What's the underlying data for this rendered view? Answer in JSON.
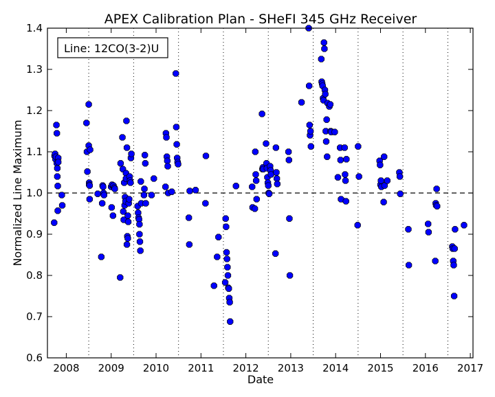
{
  "chart_data": {
    "type": "scatter",
    "title": "APEX Calibration Plan - SHeFI 345 GHz Receiver",
    "xlabel": "Date",
    "ylabel": "Normalized Line Maximum",
    "legend_box": "Line: 12CO(3-2)U",
    "legend_placement": "top-left",
    "xlim": [
      2007.58,
      2017.06
    ],
    "ylim": [
      0.6,
      1.4
    ],
    "x_ticks": [
      2008,
      2009,
      2010,
      2011,
      2012,
      2013,
      2014,
      2015,
      2016,
      2017
    ],
    "x_tick_labels": [
      "2008",
      "2009",
      "2010",
      "2011",
      "2012",
      "2013",
      "2014",
      "2015",
      "2016",
      "2017"
    ],
    "y_ticks": [
      0.6,
      0.7,
      0.8,
      0.9,
      1.0,
      1.1,
      1.2,
      1.3,
      1.4
    ],
    "y_tick_labels": [
      "0.6",
      "0.7",
      "0.8",
      "0.9",
      "1.0",
      "1.1",
      "1.2",
      "1.3",
      "1.4"
    ],
    "reference_line_y": 1.0,
    "vertical_dotted_lines_x": [
      2008.5,
      2009.5,
      2010.5,
      2011.5,
      2012.5,
      2013.5,
      2014.5,
      2015.5,
      2016.5
    ],
    "marker_color": "#0000ff",
    "marker_edge_color": "#000000",
    "x": [
      2007.73,
      2007.74,
      2007.75,
      2007.76,
      2007.77,
      2007.78,
      2007.79,
      2007.79,
      2007.8,
      2007.8,
      2007.81,
      2007.81,
      2007.82,
      2007.82,
      2007.9,
      2007.91,
      2008.45,
      2008.46,
      2008.47,
      2008.5,
      2008.5,
      2008.51,
      2008.51,
      2008.52,
      2008.52,
      2008.53,
      2008.7,
      2008.78,
      2008.8,
      2008.81,
      2008.82,
      2008.83,
      2008.84,
      2009.0,
      2009.01,
      2009.02,
      2009.04,
      2009.05,
      2009.07,
      2009.08,
      2009.2,
      2009.21,
      2009.25,
      2009.26,
      2009.27,
      2009.28,
      2009.29,
      2009.3,
      2009.31,
      2009.32,
      2009.33,
      2009.33,
      2009.34,
      2009.35,
      2009.35,
      2009.36,
      2009.37,
      2009.37,
      2009.38,
      2009.39,
      2009.4,
      2009.41,
      2009.42,
      2009.43,
      2009.44,
      2009.45,
      2009.59,
      2009.6,
      2009.61,
      2009.62,
      2009.63,
      2009.63,
      2009.64,
      2009.65,
      2009.66,
      2009.67,
      2009.73,
      2009.74,
      2009.75,
      2009.76,
      2009.77,
      2009.9,
      2009.95,
      2010.21,
      2010.22,
      2010.23,
      2010.24,
      2010.25,
      2010.26,
      2010.27,
      2010.35,
      2010.44,
      2010.45,
      2010.46,
      2010.47,
      2010.48,
      2010.49,
      2010.73,
      2010.74,
      2010.75,
      2010.88,
      2011.1,
      2011.11,
      2011.29,
      2011.36,
      2011.39,
      2011.54,
      2011.55,
      2011.56,
      2011.57,
      2011.58,
      2011.59,
      2011.6,
      2011.61,
      2011.62,
      2011.63,
      2011.64,
      2011.65,
      2011.78,
      2012.14,
      2012.15,
      2012.2,
      2012.21,
      2012.22,
      2012.23,
      2012.24,
      2012.36,
      2012.37,
      2012.38,
      2012.39,
      2012.45,
      2012.46,
      2012.47,
      2012.48,
      2012.49,
      2012.5,
      2012.51,
      2012.52,
      2012.54,
      2012.55,
      2012.56,
      2012.66,
      2012.67,
      2012.68,
      2012.69,
      2012.7,
      2012.95,
      2012.96,
      2012.97,
      2012.98,
      2013.24,
      2013.4,
      2013.41,
      2013.42,
      2013.43,
      2013.44,
      2013.45,
      2013.68,
      2013.69,
      2013.7,
      2013.71,
      2013.72,
      2013.73,
      2013.74,
      2013.75,
      2013.76,
      2013.77,
      2013.78,
      2013.79,
      2013.8,
      2013.81,
      2013.82,
      2013.86,
      2013.88,
      2013.89,
      2013.9,
      2013.98,
      2014.05,
      2014.1,
      2014.11,
      2014.12,
      2014.2,
      2014.21,
      2014.22,
      2014.23,
      2014.24,
      2014.49,
      2014.5,
      2014.52,
      2014.98,
      2014.99,
      2015.0,
      2015.01,
      2015.02,
      2015.07,
      2015.08,
      2015.09,
      2015.15,
      2015.42,
      2015.43,
      2015.44,
      2015.62,
      2015.63,
      2016.06,
      2016.07,
      2016.22,
      2016.23,
      2016.24,
      2016.25,
      2016.26,
      2016.6,
      2016.61,
      2016.62,
      2016.63,
      2016.64,
      2016.65,
      2016.66,
      2016.86
    ],
    "y": [
      0.928,
      1.09,
      1.095,
      1.082,
      1.088,
      1.165,
      1.145,
      1.072,
      1.06,
      1.04,
      1.017,
      0.957,
      1.085,
      1.075,
      0.995,
      0.97,
      1.17,
      1.1,
      1.052,
      1.215,
      1.115,
      1.025,
      1.02,
      1.018,
      0.985,
      1.105,
      0.998,
      0.845,
      0.975,
      1.018,
      1.015,
      1.0,
      0.995,
      1.015,
      0.965,
      1.02,
      0.945,
      1.018,
      1.013,
      1.01,
      0.795,
      1.072,
      1.135,
      1.058,
      0.955,
      0.935,
      1.025,
      0.97,
      0.99,
      0.98,
      1.048,
      1.035,
      1.175,
      1.11,
      0.875,
      0.895,
      0.89,
      0.945,
      0.93,
      0.975,
      0.985,
      1.04,
      1.03,
      1.025,
      1.085,
      1.095,
      0.968,
      0.952,
      0.94,
      0.936,
      0.924,
      0.9,
      0.882,
      0.86,
      1.028,
      0.975,
      0.995,
      1.01,
      1.092,
      1.072,
      0.975,
      0.995,
      1.035,
      1.015,
      1.145,
      1.135,
      1.088,
      1.078,
      1.065,
      1.0,
      1.003,
      1.29,
      1.16,
      1.118,
      1.085,
      1.075,
      1.07,
      0.94,
      0.875,
      1.005,
      1.007,
      0.975,
      1.09,
      0.775,
      0.845,
      0.893,
      0.783,
      0.938,
      0.918,
      0.856,
      0.84,
      0.82,
      0.8,
      0.77,
      0.768,
      0.745,
      0.735,
      0.688,
      1.017,
      1.015,
      0.965,
      0.962,
      1.1,
      1.045,
      1.03,
      0.985,
      1.192,
      1.058,
      1.062,
      1.058,
      1.12,
      1.072,
      1.06,
      1.038,
      1.025,
      1.018,
      1.0,
      0.998,
      1.065,
      1.055,
      1.045,
      0.853,
      1.11,
      1.05,
      1.035,
      1.022,
      1.1,
      1.08,
      0.938,
      0.8,
      1.22,
      1.4,
      1.26,
      1.165,
      1.14,
      1.15,
      1.113,
      1.325,
      1.27,
      1.265,
      1.26,
      1.23,
      1.225,
      1.365,
      1.35,
      1.25,
      1.24,
      1.15,
      1.125,
      1.178,
      1.088,
      1.218,
      1.21,
      1.215,
      1.15,
      1.148,
      1.148,
      1.038,
      1.11,
      1.08,
      0.985,
      1.11,
      1.045,
      1.03,
      0.98,
      1.082,
      0.922,
      1.113,
      1.04,
      1.078,
      1.068,
      1.02,
      1.03,
      1.015,
      0.978,
      1.088,
      1.018,
      1.03,
      1.05,
      1.04,
      0.998,
      0.912,
      0.825,
      0.925,
      0.905,
      0.835,
      0.975,
      0.97,
      1.01,
      0.968,
      0.87,
      0.865,
      0.835,
      0.825,
      0.75,
      0.865,
      0.912,
      0.922
    ]
  }
}
